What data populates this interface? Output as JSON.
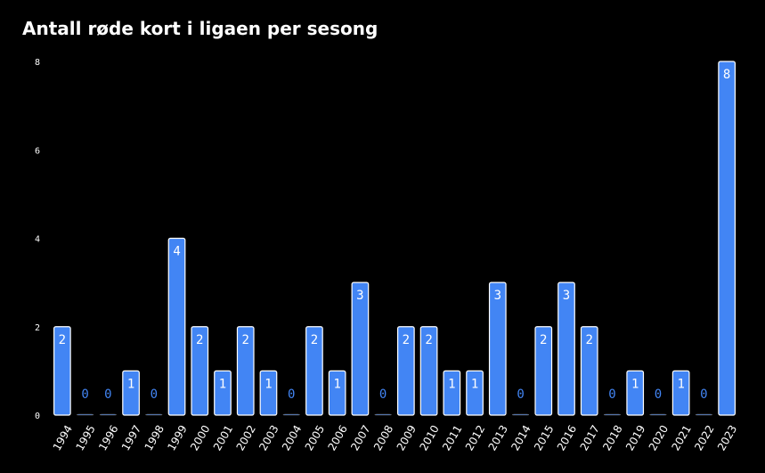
{
  "chart_data": {
    "type": "bar",
    "title": "Antall røde kort i ligaen per sesong",
    "xlabel": "",
    "ylabel": "",
    "categories": [
      "1994",
      "1995",
      "1996",
      "1997",
      "1998",
      "1999",
      "2000",
      "2001",
      "2002",
      "2003",
      "2004",
      "2005",
      "2006",
      "2007",
      "2008",
      "2009",
      "2010",
      "2011",
      "2012",
      "2013",
      "2014",
      "2015",
      "2016",
      "2017",
      "2018",
      "2019",
      "2020",
      "2021",
      "2022",
      "2023"
    ],
    "values": [
      2,
      0,
      0,
      1,
      0,
      4,
      2,
      1,
      2,
      1,
      0,
      2,
      1,
      3,
      0,
      2,
      2,
      1,
      1,
      3,
      0,
      2,
      3,
      2,
      0,
      1,
      0,
      1,
      0,
      8
    ],
    "ylim": [
      0,
      8
    ],
    "yticks": [
      0,
      2,
      4,
      6,
      8
    ],
    "grid": false,
    "legend": "none",
    "colors": {
      "bar": "#4285f4",
      "bar_stroke": "#ffffff",
      "label_inside": "#ffffff",
      "label_zero": "#4285f4",
      "background": "#000000"
    }
  }
}
